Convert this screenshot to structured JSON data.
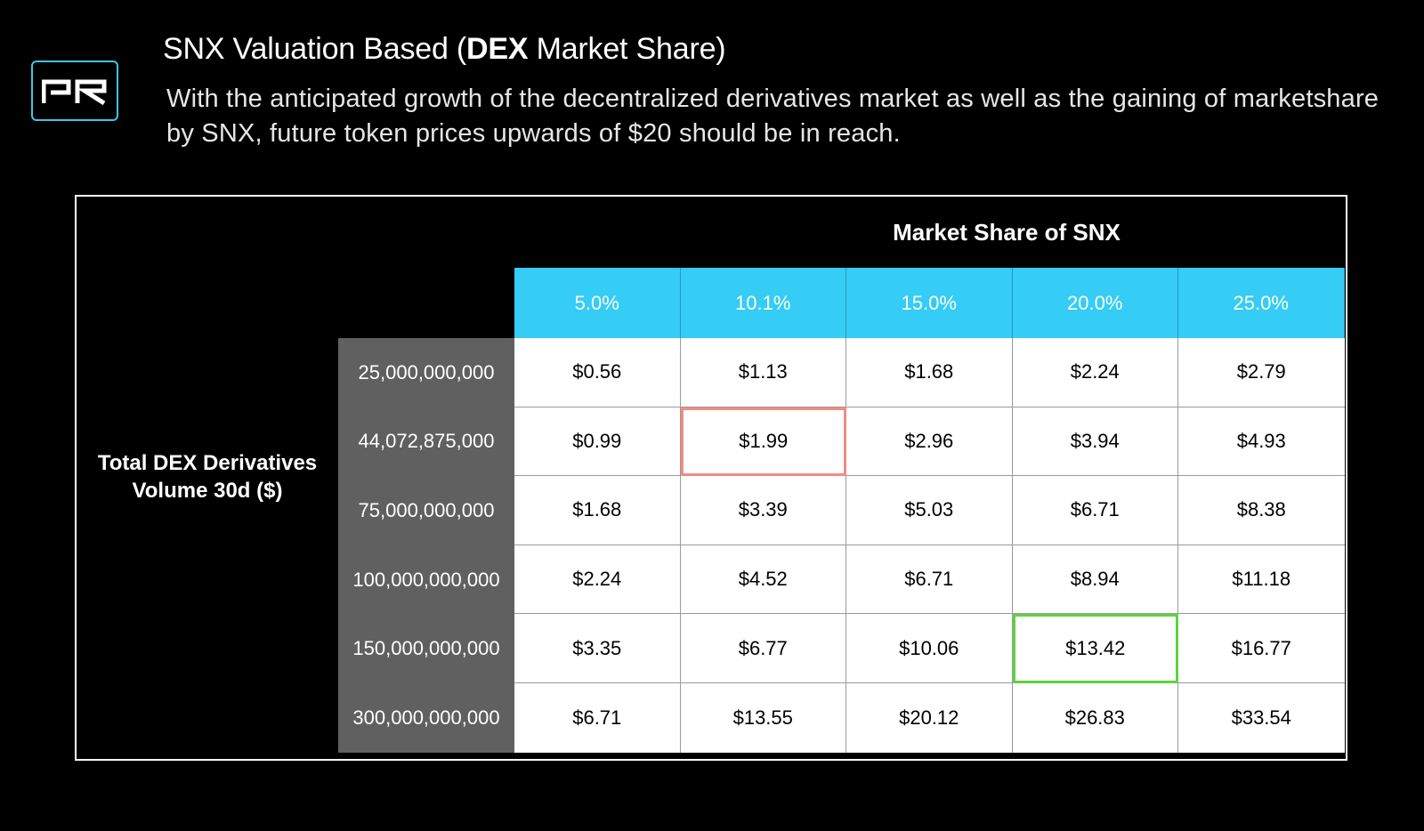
{
  "header": {
    "logo_text": "PR",
    "title_plain": "SNX Valuation Based (",
    "title_bold": "DEX",
    "title_end": " Market Share)",
    "subtitle": "With the anticipated growth of the decentralized derivatives market as well as the gaining of marketshare by SNX, future token prices upwards of $20 should be in reach."
  },
  "table": {
    "caption": "Market Share of SNX",
    "row_axis_label": "Total DEX Derivatives Volume 30d ($)",
    "columns": [
      "5.0%",
      "10.1%",
      "15.0%",
      "20.0%",
      "25.0%"
    ],
    "rows": [
      {
        "label": "25,000,000,000",
        "cells": [
          "$0.56",
          "$1.13",
          "$1.68",
          "$2.24",
          "$2.79"
        ]
      },
      {
        "label": "44,072,875,000",
        "cells": [
          "$0.99",
          "$1.99",
          "$2.96",
          "$3.94",
          "$4.93"
        ]
      },
      {
        "label": "75,000,000,000",
        "cells": [
          "$1.68",
          "$3.39",
          "$5.03",
          "$6.71",
          "$8.38"
        ]
      },
      {
        "label": "100,000,000,000",
        "cells": [
          "$2.24",
          "$4.52",
          "$6.71",
          "$8.94",
          "$11.18"
        ]
      },
      {
        "label": "150,000,000,000",
        "cells": [
          "$3.35",
          "$6.77",
          "$10.06",
          "$13.42",
          "$16.77"
        ]
      },
      {
        "label": "300,000,000,000",
        "cells": [
          "$6.71",
          "$13.55",
          "$20.12",
          "$26.83",
          "$33.54"
        ]
      }
    ],
    "highlights": [
      {
        "row": 1,
        "col": 1,
        "color": "#f28b82"
      },
      {
        "row": 4,
        "col": 3,
        "color": "#5ed33f"
      }
    ]
  },
  "colors": {
    "accent": "#35ccf5",
    "row_header_bg": "#606060",
    "background": "#000000"
  }
}
